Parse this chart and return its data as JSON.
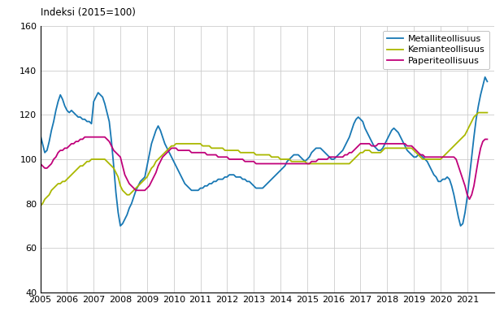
{
  "title": "Indeksi (2015=100)",
  "ylim": [
    40,
    160
  ],
  "yticks": [
    40,
    60,
    80,
    100,
    120,
    140,
    160
  ],
  "xlim": [
    2005.0,
    2022.0
  ],
  "legend": [
    "Metalliteollisuus",
    "Kemianteollisuus",
    "Paperiteollisuus"
  ],
  "colors": [
    "#1878b4",
    "#aab800",
    "#c0007a"
  ],
  "linewidth": 1.3,
  "background_color": "#ffffff",
  "grid_color": "#cccccc",
  "metalliteollisuus": [
    111,
    107,
    103,
    104,
    108,
    113,
    117,
    122,
    126,
    129,
    127,
    124,
    122,
    121,
    122,
    121,
    120,
    119,
    119,
    118,
    118,
    117,
    117,
    116,
    126,
    128,
    130,
    129,
    128,
    125,
    121,
    117,
    108,
    97,
    85,
    76,
    70,
    71,
    73,
    75,
    78,
    80,
    83,
    86,
    88,
    90,
    91,
    92,
    97,
    102,
    107,
    110,
    113,
    115,
    113,
    110,
    107,
    105,
    103,
    101,
    99,
    97,
    95,
    93,
    91,
    89,
    88,
    87,
    86,
    86,
    86,
    86,
    87,
    87,
    88,
    88,
    89,
    89,
    90,
    90,
    91,
    91,
    91,
    92,
    92,
    93,
    93,
    93,
    92,
    92,
    92,
    91,
    91,
    90,
    90,
    89,
    88,
    87,
    87,
    87,
    87,
    88,
    89,
    90,
    91,
    92,
    93,
    94,
    95,
    96,
    97,
    99,
    100,
    101,
    102,
    102,
    102,
    101,
    100,
    99,
    100,
    101,
    103,
    104,
    105,
    105,
    105,
    104,
    103,
    102,
    101,
    100,
    100,
    101,
    102,
    103,
    104,
    106,
    108,
    110,
    113,
    116,
    118,
    119,
    118,
    117,
    114,
    112,
    110,
    108,
    106,
    105,
    104,
    104,
    105,
    107,
    109,
    111,
    113,
    114,
    113,
    112,
    110,
    108,
    106,
    104,
    103,
    102,
    101,
    101,
    102,
    102,
    101,
    100,
    99,
    97,
    95,
    93,
    92,
    90,
    90,
    91,
    91,
    92,
    91,
    88,
    84,
    79,
    74,
    70,
    71,
    76,
    83,
    92,
    101,
    110,
    118,
    124,
    129,
    133,
    137,
    135
  ],
  "kemianteollisuus": [
    79,
    80,
    82,
    83,
    84,
    86,
    87,
    88,
    89,
    89,
    90,
    90,
    91,
    92,
    93,
    94,
    95,
    96,
    97,
    97,
    98,
    99,
    99,
    100,
    100,
    100,
    100,
    100,
    100,
    100,
    99,
    98,
    97,
    96,
    94,
    92,
    88,
    86,
    85,
    84,
    84,
    85,
    86,
    87,
    88,
    89,
    90,
    91,
    92,
    94,
    96,
    97,
    99,
    100,
    101,
    102,
    103,
    104,
    105,
    106,
    106,
    107,
    107,
    107,
    107,
    107,
    107,
    107,
    107,
    107,
    107,
    107,
    107,
    106,
    106,
    106,
    106,
    105,
    105,
    105,
    105,
    105,
    105,
    104,
    104,
    104,
    104,
    104,
    104,
    104,
    103,
    103,
    103,
    103,
    103,
    103,
    103,
    102,
    102,
    102,
    102,
    102,
    102,
    102,
    101,
    101,
    101,
    101,
    100,
    100,
    100,
    100,
    100,
    99,
    99,
    99,
    99,
    99,
    99,
    99,
    98,
    98,
    98,
    98,
    98,
    98,
    98,
    98,
    98,
    98,
    98,
    98,
    98,
    98,
    98,
    98,
    98,
    98,
    98,
    98,
    99,
    100,
    101,
    102,
    103,
    103,
    104,
    104,
    104,
    103,
    103,
    103,
    103,
    103,
    104,
    105,
    105,
    105,
    105,
    105,
    105,
    105,
    105,
    105,
    105,
    105,
    105,
    105,
    104,
    103,
    102,
    101,
    100,
    100,
    100,
    100,
    100,
    100,
    100,
    100,
    100,
    101,
    102,
    103,
    104,
    105,
    106,
    107,
    108,
    109,
    110,
    111,
    113,
    115,
    117,
    119,
    120,
    121,
    121,
    121,
    121,
    121
  ],
  "paperiteollisuus": [
    98,
    97,
    96,
    96,
    97,
    98,
    100,
    101,
    103,
    104,
    104,
    105,
    105,
    106,
    107,
    107,
    108,
    108,
    109,
    109,
    110,
    110,
    110,
    110,
    110,
    110,
    110,
    110,
    110,
    110,
    109,
    108,
    106,
    104,
    103,
    102,
    101,
    97,
    93,
    91,
    89,
    88,
    87,
    86,
    86,
    86,
    86,
    86,
    87,
    88,
    90,
    92,
    94,
    97,
    99,
    101,
    102,
    103,
    104,
    105,
    105,
    105,
    104,
    104,
    104,
    104,
    104,
    104,
    103,
    103,
    103,
    103,
    103,
    103,
    103,
    102,
    102,
    102,
    102,
    102,
    101,
    101,
    101,
    101,
    101,
    100,
    100,
    100,
    100,
    100,
    100,
    100,
    99,
    99,
    99,
    99,
    99,
    98,
    98,
    98,
    98,
    98,
    98,
    98,
    98,
    98,
    98,
    98,
    98,
    98,
    98,
    98,
    98,
    98,
    98,
    98,
    98,
    98,
    98,
    98,
    98,
    98,
    99,
    99,
    99,
    100,
    100,
    100,
    100,
    100,
    101,
    101,
    101,
    101,
    101,
    101,
    101,
    102,
    102,
    103,
    103,
    104,
    105,
    106,
    107,
    107,
    107,
    107,
    107,
    106,
    106,
    106,
    107,
    107,
    107,
    107,
    107,
    107,
    107,
    107,
    107,
    107,
    107,
    107,
    107,
    106,
    106,
    106,
    105,
    104,
    103,
    102,
    102,
    101,
    101,
    101,
    101,
    101,
    101,
    101,
    101,
    101,
    101,
    101,
    101,
    101,
    101,
    100,
    97,
    94,
    91,
    88,
    84,
    82,
    84,
    88,
    94,
    100,
    105,
    108,
    109,
    109
  ]
}
